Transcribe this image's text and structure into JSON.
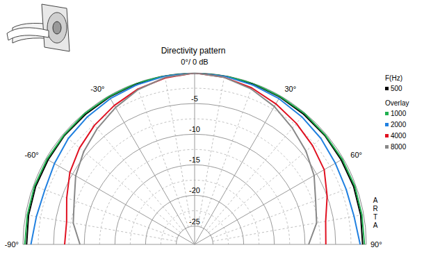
{
  "chart_data": {
    "type": "polar",
    "title": "Directivity pattern",
    "annotations": [
      "F(Hz)",
      "Overlay",
      "ARTA"
    ],
    "x": [
      -90,
      -80,
      -70,
      -60,
      -50,
      -40,
      -30,
      -20,
      -10,
      0,
      10,
      20,
      30,
      40,
      50,
      60,
      70,
      80,
      90
    ],
    "xlim": [
      -90,
      90
    ],
    "xticks": [
      {
        "value": -90,
        "label": "-90°"
      },
      {
        "value": -60,
        "label": "-60°"
      },
      {
        "value": -30,
        "label": "-30°"
      },
      {
        "value": 0,
        "label": "0°/ 0 dB"
      },
      {
        "value": 30,
        "label": "30°"
      },
      {
        "value": 60,
        "label": "60°"
      },
      {
        "value": 90,
        "label": "90°"
      }
    ],
    "ylim": [
      -28,
      0
    ],
    "yticks": [
      -25,
      -20,
      -15,
      -10,
      -5
    ],
    "grid": true,
    "legend": "right",
    "series": [
      {
        "name": "500",
        "color": "#000000",
        "values": [
          -0.6,
          -0.5,
          -0.4,
          -0.4,
          -0.3,
          -0.3,
          -0.2,
          -0.1,
          0,
          0,
          0,
          -0.1,
          -0.2,
          -0.3,
          -0.3,
          -0.4,
          -0.4,
          -0.5,
          -0.6
        ]
      },
      {
        "name": "1000",
        "color": "#20b050",
        "values": [
          -0.3,
          -0.3,
          -0.2,
          -0.2,
          -0.2,
          -0.1,
          -0.1,
          0,
          0,
          0,
          0,
          0,
          -0.1,
          -0.1,
          -0.2,
          -0.2,
          -0.2,
          -0.3,
          -0.3
        ]
      },
      {
        "name": "2000",
        "color": "#2080e0",
        "values": [
          -1.3,
          -1.8,
          -2.0,
          -1.6,
          -1.1,
          -0.8,
          -0.5,
          -0.3,
          -0.1,
          0,
          -0.1,
          -0.3,
          -0.5,
          -0.8,
          -1.1,
          -1.5,
          -1.7,
          -1.6,
          -1.0
        ]
      },
      {
        "name": "4000",
        "color": "#e01020",
        "values": [
          -6.8,
          -6.8,
          -5.8,
          -4.5,
          -3.5,
          -2.6,
          -1.8,
          -1.0,
          -0.4,
          0,
          -0.3,
          -0.8,
          -1.5,
          -2.2,
          -2.9,
          -3.6,
          -5.0,
          -6.3,
          -6.6
        ]
      },
      {
        "name": "8000",
        "color": "#888888",
        "values": [
          -9.3,
          -7.9,
          -7.1,
          -5.6,
          -4.4,
          -3.3,
          -2.2,
          -1.1,
          -0.3,
          0,
          -0.3,
          -1.0,
          -2.0,
          -3.2,
          -4.3,
          -5.5,
          -7.0,
          -7.8,
          -9.4
        ]
      }
    ]
  }
}
